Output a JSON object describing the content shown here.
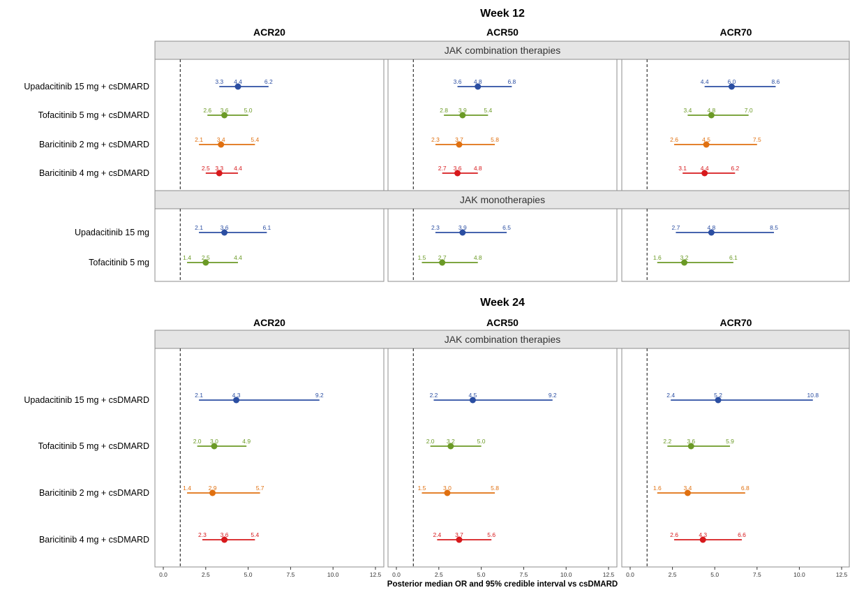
{
  "chart_data": {
    "type": "forest",
    "xlabel": "Posterior median OR and 95% credible interval vs csDMARD",
    "xticks": [
      "0.0",
      "2.5",
      "5.0",
      "7.5",
      "10.0",
      "12.5"
    ],
    "xlim": [
      0,
      12.5
    ],
    "reference_line": 1,
    "columns": [
      "ACR20",
      "ACR50",
      "ACR70"
    ],
    "colors": {
      "Upadacitinib": "#2b4ea2",
      "Tofacitinib": "#6b9a26",
      "Baricitinib 2 mg": "#e07010",
      "Baricitinib 4 mg": "#d7191c"
    },
    "weeks": [
      {
        "title": "Week 12",
        "groups": [
          {
            "strip": "JAK combination therapies",
            "rows": [
              {
                "label": "Upadacitinib 15 mg + csDMARD",
                "color": "#2b4ea2",
                "values": [
                  {
                    "lo": 3.3,
                    "median": 4.4,
                    "hi": 6.2,
                    "lo_label": "3.3",
                    "median_label": "4.4",
                    "hi_label": "6.2"
                  },
                  {
                    "lo": 3.6,
                    "median": 4.8,
                    "hi": 6.8,
                    "lo_label": "3.6",
                    "median_label": "4.8",
                    "hi_label": "6.8"
                  },
                  {
                    "lo": 4.4,
                    "median": 6.0,
                    "hi": 8.6,
                    "lo_label": "4.4",
                    "median_label": "6.0",
                    "hi_label": "8.6"
                  }
                ]
              },
              {
                "label": "Tofacitinib 5 mg + csDMARD",
                "color": "#6b9a26",
                "values": [
                  {
                    "lo": 2.6,
                    "median": 3.6,
                    "hi": 5.0,
                    "lo_label": "2.6",
                    "median_label": "3.6",
                    "hi_label": "5.0"
                  },
                  {
                    "lo": 2.8,
                    "median": 3.9,
                    "hi": 5.4,
                    "lo_label": "2.8",
                    "median_label": "3.9",
                    "hi_label": "5.4"
                  },
                  {
                    "lo": 3.4,
                    "median": 4.8,
                    "hi": 7.0,
                    "lo_label": "3.4",
                    "median_label": "4.8",
                    "hi_label": "7.0"
                  }
                ]
              },
              {
                "label": "Baricitinib 2 mg + csDMARD",
                "color": "#e07010",
                "values": [
                  {
                    "lo": 2.1,
                    "median": 3.4,
                    "hi": 5.4,
                    "lo_label": "2.1",
                    "median_label": "3.4",
                    "hi_label": "5.4"
                  },
                  {
                    "lo": 2.3,
                    "median": 3.7,
                    "hi": 5.8,
                    "lo_label": "2.3",
                    "median_label": "3.7",
                    "hi_label": "5.8"
                  },
                  {
                    "lo": 2.6,
                    "median": 4.5,
                    "hi": 7.5,
                    "lo_label": "2.6",
                    "median_label": "4.5",
                    "hi_label": "7.5"
                  }
                ]
              },
              {
                "label": "Baricitinib 4 mg + csDMARD",
                "color": "#d7191c",
                "values": [
                  {
                    "lo": 2.5,
                    "median": 3.3,
                    "hi": 4.4,
                    "lo_label": "2.5",
                    "median_label": "3.3",
                    "hi_label": "4.4"
                  },
                  {
                    "lo": 2.7,
                    "median": 3.6,
                    "hi": 4.8,
                    "lo_label": "2.7",
                    "median_label": "3.6",
                    "hi_label": "4.8"
                  },
                  {
                    "lo": 3.1,
                    "median": 4.4,
                    "hi": 6.2,
                    "lo_label": "3.1",
                    "median_label": "4.4",
                    "hi_label": "6.2"
                  }
                ]
              }
            ]
          },
          {
            "strip": "JAK monotherapies",
            "rows": [
              {
                "label": "Upadacitinib 15 mg",
                "color": "#2b4ea2",
                "values": [
                  {
                    "lo": 2.1,
                    "median": 3.6,
                    "hi": 6.1,
                    "lo_label": "2.1",
                    "median_label": "3.6",
                    "hi_label": "6.1"
                  },
                  {
                    "lo": 2.3,
                    "median": 3.9,
                    "hi": 6.5,
                    "lo_label": "2.3",
                    "median_label": "3.9",
                    "hi_label": "6.5"
                  },
                  {
                    "lo": 2.7,
                    "median": 4.8,
                    "hi": 8.5,
                    "lo_label": "2.7",
                    "median_label": "4.8",
                    "hi_label": "8.5"
                  }
                ]
              },
              {
                "label": "Tofacitinib 5 mg",
                "color": "#6b9a26",
                "values": [
                  {
                    "lo": 1.4,
                    "median": 2.5,
                    "hi": 4.4,
                    "lo_label": "1.4",
                    "median_label": "2.5",
                    "hi_label": "4.4"
                  },
                  {
                    "lo": 1.5,
                    "median": 2.7,
                    "hi": 4.8,
                    "lo_label": "1.5",
                    "median_label": "2.7",
                    "hi_label": "4.8"
                  },
                  {
                    "lo": 1.6,
                    "median": 3.2,
                    "hi": 6.1,
                    "lo_label": "1.6",
                    "median_label": "3.2",
                    "hi_label": "6.1"
                  }
                ]
              }
            ]
          }
        ]
      },
      {
        "title": "Week 24",
        "groups": [
          {
            "strip": "JAK combination therapies",
            "rows": [
              {
                "label": "Upadacitinib 15 mg + csDMARD",
                "color": "#2b4ea2",
                "values": [
                  {
                    "lo": 2.1,
                    "median": 4.3,
                    "hi": 9.2,
                    "lo_label": "2.1",
                    "median_label": "4.3",
                    "hi_label": "9.2"
                  },
                  {
                    "lo": 2.2,
                    "median": 4.5,
                    "hi": 9.2,
                    "lo_label": "2.2",
                    "median_label": "4.5",
                    "hi_label": "9.2"
                  },
                  {
                    "lo": 2.4,
                    "median": 5.2,
                    "hi": 10.8,
                    "lo_label": "2.4",
                    "median_label": "5.2",
                    "hi_label": "10.8"
                  }
                ]
              },
              {
                "label": "Tofacitinib 5 mg + csDMARD",
                "color": "#6b9a26",
                "values": [
                  {
                    "lo": 2.0,
                    "median": 3.0,
                    "hi": 4.9,
                    "lo_label": "2.0",
                    "median_label": "3.0",
                    "hi_label": "4.9"
                  },
                  {
                    "lo": 2.0,
                    "median": 3.2,
                    "hi": 5.0,
                    "lo_label": "2.0",
                    "median_label": "3.2",
                    "hi_label": "5.0"
                  },
                  {
                    "lo": 2.2,
                    "median": 3.6,
                    "hi": 5.9,
                    "lo_label": "2.2",
                    "median_label": "3.6",
                    "hi_label": "5.9"
                  }
                ]
              },
              {
                "label": "Baricitinib 2 mg + csDMARD",
                "color": "#e07010",
                "values": [
                  {
                    "lo": 1.4,
                    "median": 2.9,
                    "hi": 5.7,
                    "lo_label": "1.4",
                    "median_label": "2.9",
                    "hi_label": "5.7"
                  },
                  {
                    "lo": 1.5,
                    "median": 3.0,
                    "hi": 5.8,
                    "lo_label": "1.5",
                    "median_label": "3.0",
                    "hi_label": "5.8"
                  },
                  {
                    "lo": 1.6,
                    "median": 3.4,
                    "hi": 6.8,
                    "lo_label": "1.6",
                    "median_label": "3.4",
                    "hi_label": "6.8"
                  }
                ]
              },
              {
                "label": "Baricitinib 4 mg + csDMARD",
                "color": "#d7191c",
                "values": [
                  {
                    "lo": 2.3,
                    "median": 3.6,
                    "hi": 5.4,
                    "lo_label": "2.3",
                    "median_label": "3.6",
                    "hi_label": "5.4"
                  },
                  {
                    "lo": 2.4,
                    "median": 3.7,
                    "hi": 5.6,
                    "lo_label": "2.4",
                    "median_label": "3.7",
                    "hi_label": "5.6"
                  },
                  {
                    "lo": 2.6,
                    "median": 4.3,
                    "hi": 6.6,
                    "lo_label": "2.6",
                    "median_label": "4.3",
                    "hi_label": "6.6"
                  }
                ]
              }
            ]
          }
        ]
      }
    ]
  }
}
